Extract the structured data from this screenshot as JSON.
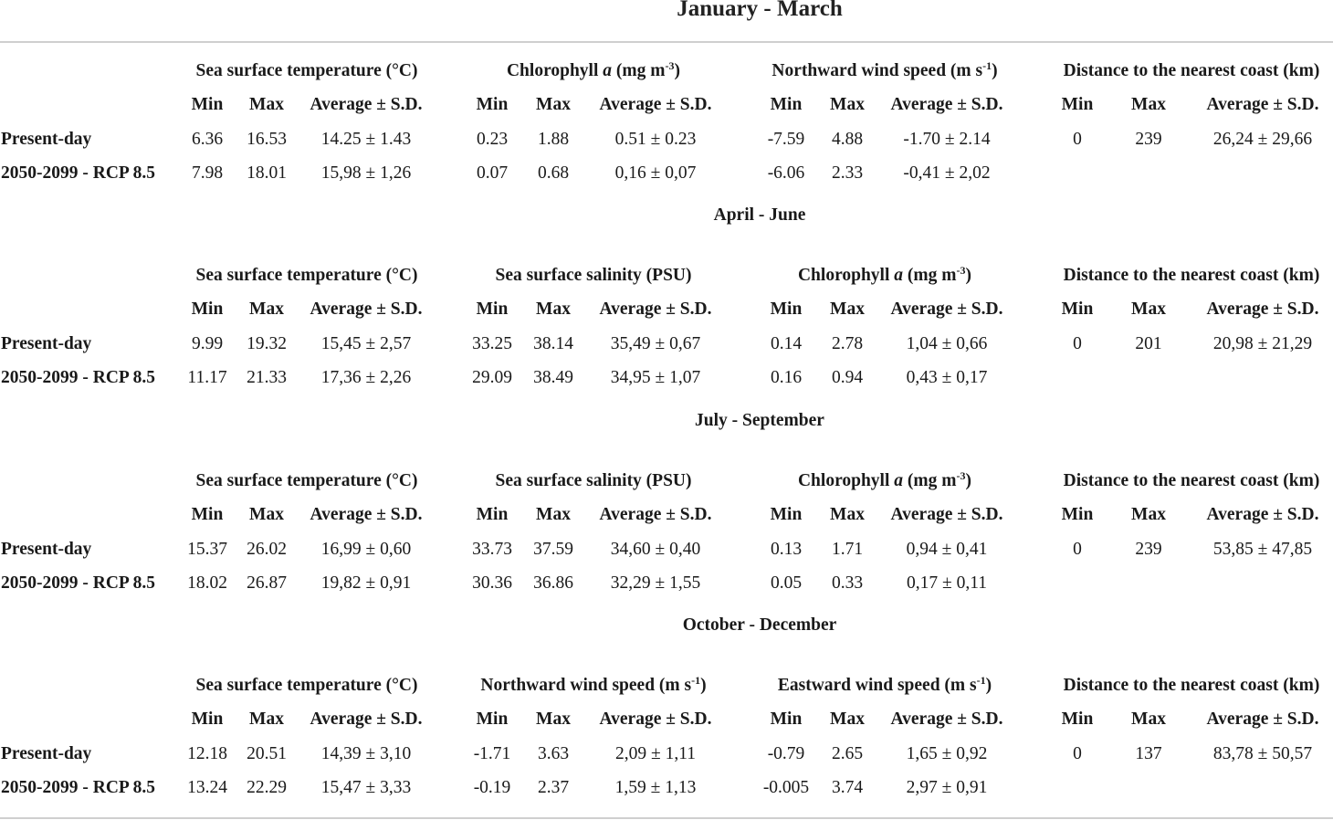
{
  "title": "January - March",
  "sections": [
    {
      "season": "",
      "groups": [
        {
          "label": "Sea surface temperature (°C)"
        },
        {
          "label_pre": "Chlorophyll ",
          "label_ital": "a",
          "label_post": " (mg m",
          "label_sup": "-3",
          "label_end": ")"
        },
        {
          "label_pre": "Northward wind speed (m s",
          "label_sup": "-1",
          "label_end": ")"
        },
        {
          "label": "Distance to the nearest coast (km)"
        }
      ],
      "subheaders": [
        "Min",
        "Max",
        "Average ± S.D."
      ],
      "rows": [
        {
          "label": "Present-day",
          "cells": [
            "6.36",
            "16.53",
            "14.25 ± 1.43",
            "0.23",
            "1.88",
            "0.51 ± 0.23",
            "-7.59",
            "4.88",
            "-1.70 ± 2.14",
            "0",
            "239",
            "26,24 ± 29,66"
          ]
        },
        {
          "label": "2050-2099 - RCP 8.5",
          "cells": [
            "7.98",
            "18.01",
            "15,98 ± 1,26",
            "0.07",
            "0.68",
            "0,16 ± 0,07",
            "-6.06",
            "2.33",
            "-0,41 ± 2,02",
            "",
            "",
            ""
          ]
        }
      ]
    },
    {
      "season": "April - June",
      "groups": [
        {
          "label": "Sea surface temperature (°C)"
        },
        {
          "label": "Sea surface salinity (PSU)"
        },
        {
          "label_pre": "Chlorophyll ",
          "label_ital": "a",
          "label_post": " (mg m",
          "label_sup": "-3",
          "label_end": ")"
        },
        {
          "label": "Distance to the nearest coast (km)"
        }
      ],
      "subheaders": [
        "Min",
        "Max",
        "Average ± S.D."
      ],
      "rows": [
        {
          "label": "Present-day",
          "cells": [
            "9.99",
            "19.32",
            "15,45 ± 2,57",
            "33.25",
            "38.14",
            "35,49 ± 0,67",
            "0.14",
            "2.78",
            "1,04 ± 0,66",
            "0",
            "201",
            "20,98 ± 21,29"
          ]
        },
        {
          "label": "2050-2099 - RCP 8.5",
          "cells": [
            "11.17",
            "21.33",
            "17,36 ± 2,26",
            "29.09",
            "38.49",
            "34,95 ± 1,07",
            "0.16",
            "0.94",
            "0,43 ± 0,17",
            "",
            "",
            ""
          ]
        }
      ]
    },
    {
      "season": "July - September",
      "groups": [
        {
          "label": "Sea surface temperature (°C)"
        },
        {
          "label": "Sea surface salinity (PSU)"
        },
        {
          "label_pre": "Chlorophyll ",
          "label_ital": "a",
          "label_post": " (mg m",
          "label_sup": "-3",
          "label_end": ")"
        },
        {
          "label": "Distance to the nearest coast (km)"
        }
      ],
      "subheaders": [
        "Min",
        "Max",
        "Average ± S.D."
      ],
      "rows": [
        {
          "label": "Present-day",
          "cells": [
            "15.37",
            "26.02",
            "16,99 ± 0,60",
            "33.73",
            "37.59",
            "34,60 ± 0,40",
            "0.13",
            "1.71",
            "0,94 ± 0,41",
            "0",
            "239",
            "53,85 ± 47,85"
          ]
        },
        {
          "label": "2050-2099 - RCP 8.5",
          "cells": [
            "18.02",
            "26.87",
            "19,82 ± 0,91",
            "30.36",
            "36.86",
            "32,29 ± 1,55",
            "0.05",
            "0.33",
            "0,17 ± 0,11",
            "",
            "",
            ""
          ]
        }
      ]
    },
    {
      "season": "October - December",
      "groups": [
        {
          "label": "Sea surface temperature (°C)"
        },
        {
          "label_pre": "Northward wind speed (m s",
          "label_sup": "-1",
          "label_end": ")"
        },
        {
          "label_pre": "Eastward wind speed (m s",
          "label_sup": "-1",
          "label_end": ")"
        },
        {
          "label": "Distance to the nearest coast (km)"
        }
      ],
      "subheaders": [
        "Min",
        "Max",
        "Average ± S.D."
      ],
      "rows": [
        {
          "label": "Present-day",
          "cells": [
            "12.18",
            "20.51",
            "14,39 ± 3,10",
            "-1.71",
            "3.63",
            "2,09 ± 1,11",
            "-0.79",
            "2.65",
            "1,65 ± 0,92",
            "0",
            "137",
            "83,78 ± 50,57"
          ]
        },
        {
          "label": "2050-2099 - RCP 8.5",
          "cells": [
            "13.24",
            "22.29",
            "15,47 ± 3,33",
            "-0.19",
            "2.37",
            "1,59 ± 1,13",
            "-0.005",
            "3.74",
            "2,97 ± 0,91",
            "",
            "",
            ""
          ]
        }
      ]
    }
  ]
}
